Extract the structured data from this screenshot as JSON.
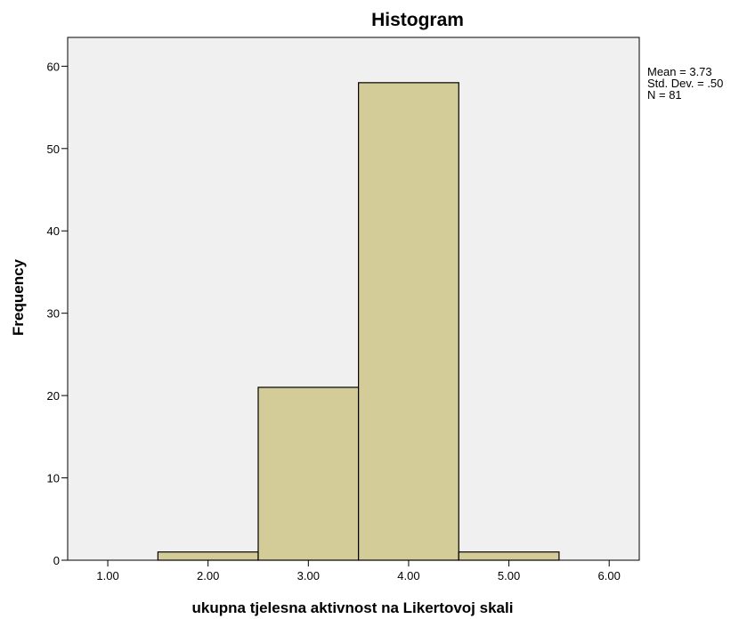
{
  "chart_data": {
    "type": "bar",
    "title": "Histogram",
    "xlabel": "ukupna tjelesna aktivnost na Likertovoj skali",
    "ylabel": "Frequency",
    "x_ticks": [
      "1.00",
      "2.00",
      "3.00",
      "4.00",
      "5.00",
      "6.00"
    ],
    "y_ticks": [
      "0",
      "10",
      "20",
      "30",
      "40",
      "50",
      "60"
    ],
    "xlim": [
      0.6,
      6.3
    ],
    "ylim": [
      0,
      63.5
    ],
    "bins": [
      {
        "from": 1.5,
        "to": 2.5,
        "count": 1
      },
      {
        "from": 2.5,
        "to": 3.5,
        "count": 21
      },
      {
        "from": 3.5,
        "to": 4.5,
        "count": 58
      },
      {
        "from": 4.5,
        "to": 5.5,
        "count": 1
      }
    ],
    "stats": {
      "mean": "Mean = 3.73",
      "std": "Std. Dev. = .50",
      "n": "N = 81"
    },
    "grid": false,
    "bar_color": "#d3cb98",
    "plot_background": "#f0f0f0"
  }
}
